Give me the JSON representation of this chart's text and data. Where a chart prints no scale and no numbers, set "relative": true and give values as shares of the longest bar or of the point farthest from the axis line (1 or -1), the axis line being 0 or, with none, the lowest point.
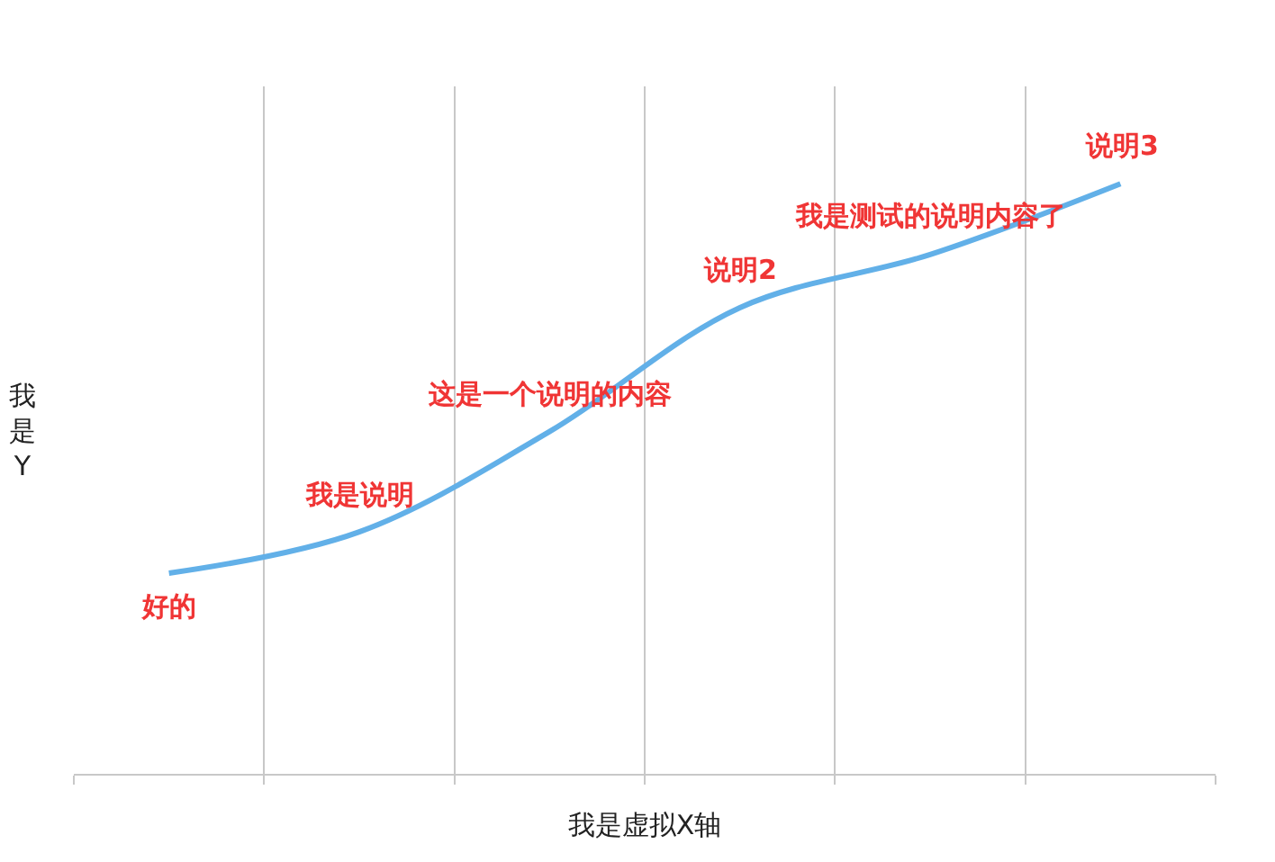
{
  "chart_data": {
    "type": "line",
    "relative": true,
    "xlabel": "我是虚拟X轴",
    "ylabel": "我是Y",
    "categories": [
      null,
      null,
      null,
      null,
      null,
      null
    ],
    "series": [
      {
        "color": "#62b0e8",
        "values": [
          0.34,
          0.41,
          0.58,
          0.79,
          0.88,
          1.0
        ]
      }
    ],
    "annotations": [
      "好的",
      "我是说明",
      "这是一个说明的内容",
      "说明2",
      "我是测试的说明内容了",
      "说明3"
    ],
    "grid": "x",
    "legend": false,
    "marker": "none",
    "line_style": "solid"
  }
}
